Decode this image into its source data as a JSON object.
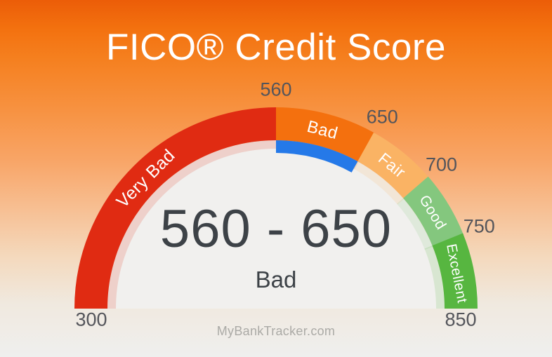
{
  "header": {
    "title": "FICO® Credit Score"
  },
  "gauge": {
    "center_value": "560 - 650",
    "center_label": "Bad"
  },
  "footer": {
    "source": "MyBankTracker.com"
  },
  "colors": {
    "background_top": "#ec5d08",
    "background_bottom": "#efefee",
    "inner_circle": "#f1f0ee",
    "highlight_blue": "#2579e8",
    "tick_text": "#54555b",
    "center_text": "#3d4247",
    "title_text": "#ffffff",
    "source_text": "#abaaa6"
  },
  "chart_data": {
    "type": "gauge",
    "title": "FICO® Credit Score",
    "min": 300,
    "max": 850,
    "selected_range": {
      "from": 560,
      "to": 650,
      "rating": "Bad",
      "display": "560 - 650",
      "start_angle": 90,
      "end_angle": 119
    },
    "segments": [
      {
        "label": "Very Bad",
        "from": 300,
        "to": 560,
        "color": "#e02b12",
        "start_angle": 0,
        "end_angle": 90
      },
      {
        "label": "Bad",
        "from": 560,
        "to": 650,
        "color": "#f4700e",
        "start_angle": 90,
        "end_angle": 119
      },
      {
        "label": "Fair",
        "from": 650,
        "to": 700,
        "color": "#fab364",
        "start_angle": 119,
        "end_angle": 139
      },
      {
        "label": "Good",
        "from": 700,
        "to": 750,
        "color": "#84c77e",
        "start_angle": 139,
        "end_angle": 158
      },
      {
        "label": "Excellent",
        "from": 750,
        "to": 850,
        "color": "#57b640",
        "start_angle": 158,
        "end_angle": 180
      }
    ],
    "ticks": [
      {
        "label": "560",
        "angle": 90
      },
      {
        "label": "650",
        "angle": 119
      },
      {
        "label": "700",
        "angle": 139
      },
      {
        "label": "750",
        "angle": 158
      }
    ],
    "end_labels": [
      {
        "label": "300",
        "angle": 0
      },
      {
        "label": "850",
        "angle": 180
      }
    ],
    "source": "MyBankTracker.com"
  }
}
